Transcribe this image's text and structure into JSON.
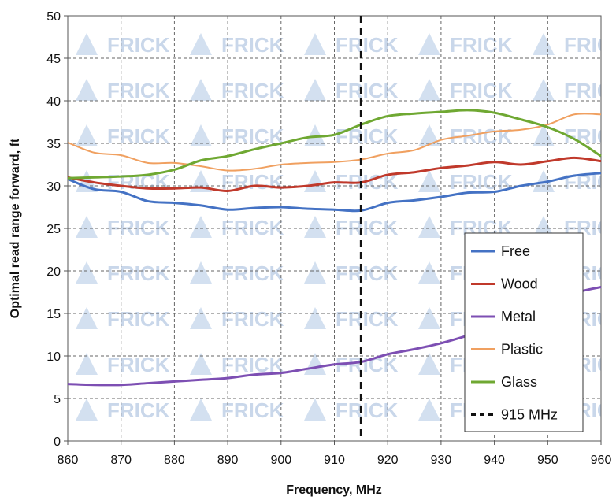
{
  "chart_data": {
    "type": "line",
    "title": "",
    "xlabel": "Frequency, MHz",
    "ylabel": "Optimal read range forward, ft",
    "xlim": [
      860,
      960
    ],
    "ylim": [
      0,
      50
    ],
    "xticks": [
      860,
      870,
      880,
      890,
      900,
      910,
      920,
      930,
      940,
      950,
      960
    ],
    "yticks": [
      0,
      5,
      10,
      15,
      20,
      25,
      30,
      35,
      40,
      45,
      50
    ],
    "grid": "dashed",
    "legend_position": "bottom-right",
    "watermark": "FRICK",
    "x": [
      860,
      865,
      870,
      875,
      880,
      885,
      890,
      895,
      900,
      905,
      910,
      915,
      920,
      925,
      930,
      935,
      940,
      945,
      950,
      955,
      960
    ],
    "series": [
      {
        "name": "Free",
        "color": "#4472c4",
        "style": "solid",
        "values": [
          30.8,
          29.6,
          29.3,
          28.2,
          28.0,
          27.7,
          27.2,
          27.4,
          27.5,
          27.3,
          27.2,
          27.1,
          28.0,
          28.3,
          28.7,
          29.2,
          29.3,
          30.0,
          30.5,
          31.2,
          31.5
        ]
      },
      {
        "name": "Wood",
        "color": "#c0392b",
        "style": "solid",
        "values": [
          31.0,
          30.4,
          30.0,
          29.7,
          29.7,
          29.8,
          29.4,
          30.0,
          29.8,
          30.0,
          30.4,
          30.4,
          31.3,
          31.6,
          32.1,
          32.4,
          32.8,
          32.5,
          32.9,
          33.3,
          32.9
        ]
      },
      {
        "name": "Metal",
        "color": "#7d4fb3",
        "style": "solid",
        "values": [
          6.7,
          6.6,
          6.6,
          6.8,
          7.0,
          7.2,
          7.4,
          7.8,
          8.0,
          8.5,
          9.0,
          9.3,
          10.2,
          10.8,
          11.5,
          12.4,
          13.4,
          14.8,
          16.2,
          17.4,
          18.1
        ]
      },
      {
        "name": "Plastic",
        "color": "#f0a060",
        "style": "solid",
        "values": [
          35.1,
          33.9,
          33.6,
          32.7,
          32.7,
          32.3,
          31.8,
          32.0,
          32.5,
          32.7,
          32.8,
          33.1,
          33.8,
          34.2,
          35.4,
          35.9,
          36.4,
          36.6,
          37.2,
          38.4,
          38.4
        ]
      },
      {
        "name": "Glass",
        "color": "#6fa832",
        "style": "solid",
        "values": [
          30.9,
          31.0,
          31.1,
          31.3,
          31.9,
          33.0,
          33.5,
          34.3,
          35.0,
          35.7,
          36.0,
          37.2,
          38.2,
          38.5,
          38.7,
          38.9,
          38.6,
          37.8,
          36.9,
          35.5,
          33.5
        ]
      },
      {
        "name": "915 MHz",
        "color": "#111111",
        "style": "dashed",
        "vertical_x": 915
      }
    ]
  }
}
